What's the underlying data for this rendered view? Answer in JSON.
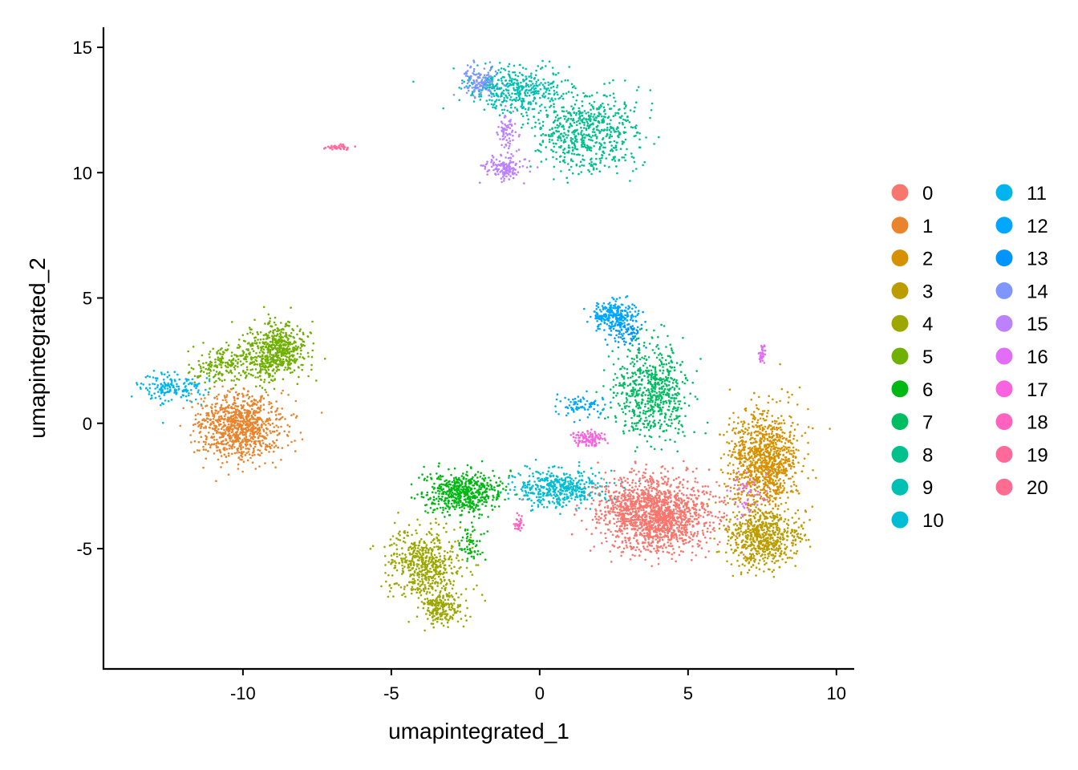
{
  "chart_data": {
    "type": "scatter",
    "title": "",
    "xlabel": "umapintegrated_1",
    "ylabel": "umapintegrated_2",
    "xlim": [
      -14.7,
      10.6
    ],
    "ylim": [
      -9.8,
      15.8
    ],
    "xticks": [
      -10,
      -5,
      0,
      5,
      10
    ],
    "xtick_labels": [
      "-10",
      "-5",
      "0",
      "5",
      "10"
    ],
    "yticks": [
      -5,
      0,
      5,
      10,
      15
    ],
    "ytick_labels": [
      "-5",
      "0",
      "5",
      "10",
      "15"
    ],
    "grid": false,
    "legend_position": "right",
    "legend_columns": 2,
    "series": [
      {
        "name": "0",
        "color": "#F8766D",
        "clusters": [
          {
            "cx": 3.9,
            "cy": -3.6,
            "sx": 1.3,
            "sy": 1.0,
            "n": 1700
          }
        ]
      },
      {
        "name": "1",
        "color": "#E9842C",
        "clusters": [
          {
            "cx": -10.1,
            "cy": -0.1,
            "sx": 1.0,
            "sy": 0.9,
            "n": 950
          }
        ]
      },
      {
        "name": "2",
        "color": "#D69100",
        "clusters": [
          {
            "cx": 7.6,
            "cy": -1.5,
            "sx": 0.8,
            "sy": 1.4,
            "n": 1050
          }
        ]
      },
      {
        "name": "3",
        "color": "#BC9D00",
        "clusters": [
          {
            "cx": 7.5,
            "cy": -4.6,
            "sx": 0.8,
            "sy": 0.8,
            "n": 650
          }
        ]
      },
      {
        "name": "4",
        "color": "#9CA700",
        "clusters": [
          {
            "cx": -3.9,
            "cy": -5.6,
            "sx": 0.9,
            "sy": 0.9,
            "n": 550
          },
          {
            "cx": -3.3,
            "cy": -7.3,
            "sx": 0.5,
            "sy": 0.5,
            "n": 220
          }
        ]
      },
      {
        "name": "5",
        "color": "#6FB000",
        "clusters": [
          {
            "cx": -8.9,
            "cy": 2.9,
            "sx": 0.7,
            "sy": 0.8,
            "n": 600
          },
          {
            "cx": -10.6,
            "cy": 2.3,
            "sx": 0.8,
            "sy": 0.5,
            "n": 200
          }
        ]
      },
      {
        "name": "6",
        "color": "#00B813",
        "clusters": [
          {
            "cx": -2.6,
            "cy": -2.8,
            "sx": 0.9,
            "sy": 0.6,
            "n": 550
          },
          {
            "cx": -2.3,
            "cy": -4.8,
            "sx": 0.3,
            "sy": 0.5,
            "n": 60
          }
        ]
      },
      {
        "name": "7",
        "color": "#00BD61",
        "clusters": [
          {
            "cx": 3.8,
            "cy": 1.3,
            "sx": 0.9,
            "sy": 1.3,
            "n": 650
          }
        ]
      },
      {
        "name": "8",
        "color": "#00C08E",
        "clusters": [
          {
            "cx": 1.6,
            "cy": 11.7,
            "sx": 1.2,
            "sy": 1.1,
            "n": 650
          }
        ]
      },
      {
        "name": "9",
        "color": "#00C0B4",
        "clusters": [
          {
            "cx": -0.8,
            "cy": 13.3,
            "sx": 1.0,
            "sy": 0.6,
            "n": 400
          }
        ]
      },
      {
        "name": "10",
        "color": "#00BDD4",
        "clusters": [
          {
            "cx": 0.6,
            "cy": -2.6,
            "sx": 1.0,
            "sy": 0.5,
            "n": 450
          }
        ]
      },
      {
        "name": "11",
        "color": "#00B5EE",
        "clusters": [
          {
            "cx": -12.4,
            "cy": 1.4,
            "sx": 0.7,
            "sy": 0.4,
            "n": 170
          }
        ]
      },
      {
        "name": "12",
        "color": "#00A7FF",
        "clusters": [
          {
            "cx": 2.5,
            "cy": 4.3,
            "sx": 0.5,
            "sy": 0.4,
            "n": 260
          },
          {
            "cx": 1.4,
            "cy": 0.7,
            "sx": 0.6,
            "sy": 0.3,
            "n": 80
          }
        ]
      },
      {
        "name": "13",
        "color": "#0094FF",
        "clusters": [
          {
            "cx": 2.9,
            "cy": 3.6,
            "sx": 0.4,
            "sy": 0.4,
            "n": 80
          }
        ]
      },
      {
        "name": "14",
        "color": "#7F96FF",
        "clusters": [
          {
            "cx": -2.0,
            "cy": 13.6,
            "sx": 0.4,
            "sy": 0.4,
            "n": 150
          }
        ]
      },
      {
        "name": "15",
        "color": "#BC81FF",
        "clusters": [
          {
            "cx": -1.2,
            "cy": 10.2,
            "sx": 0.5,
            "sy": 0.3,
            "n": 140
          },
          {
            "cx": -1.1,
            "cy": 11.6,
            "sx": 0.2,
            "sy": 0.6,
            "n": 70
          }
        ]
      },
      {
        "name": "16",
        "color": "#E26EF7",
        "clusters": [
          {
            "cx": 7.5,
            "cy": 2.8,
            "sx": 0.07,
            "sy": 0.25,
            "n": 40
          },
          {
            "cx": 7.0,
            "cy": -2.8,
            "sx": 0.4,
            "sy": 0.6,
            "n": 60
          }
        ]
      },
      {
        "name": "17",
        "color": "#F863DF",
        "clusters": [
          {
            "cx": 1.6,
            "cy": -0.6,
            "sx": 0.35,
            "sy": 0.2,
            "n": 110
          }
        ]
      },
      {
        "name": "18",
        "color": "#FF62BF",
        "clusters": [
          {
            "cx": -0.7,
            "cy": -4.0,
            "sx": 0.12,
            "sy": 0.25,
            "n": 30
          }
        ]
      },
      {
        "name": "19",
        "color": "#FF6A9A",
        "clusters": [
          {
            "cx": -6.8,
            "cy": 11.0,
            "sx": 0.3,
            "sy": 0.07,
            "n": 40
          }
        ]
      },
      {
        "name": "20",
        "color": "#FF6C91",
        "clusters": []
      }
    ]
  }
}
